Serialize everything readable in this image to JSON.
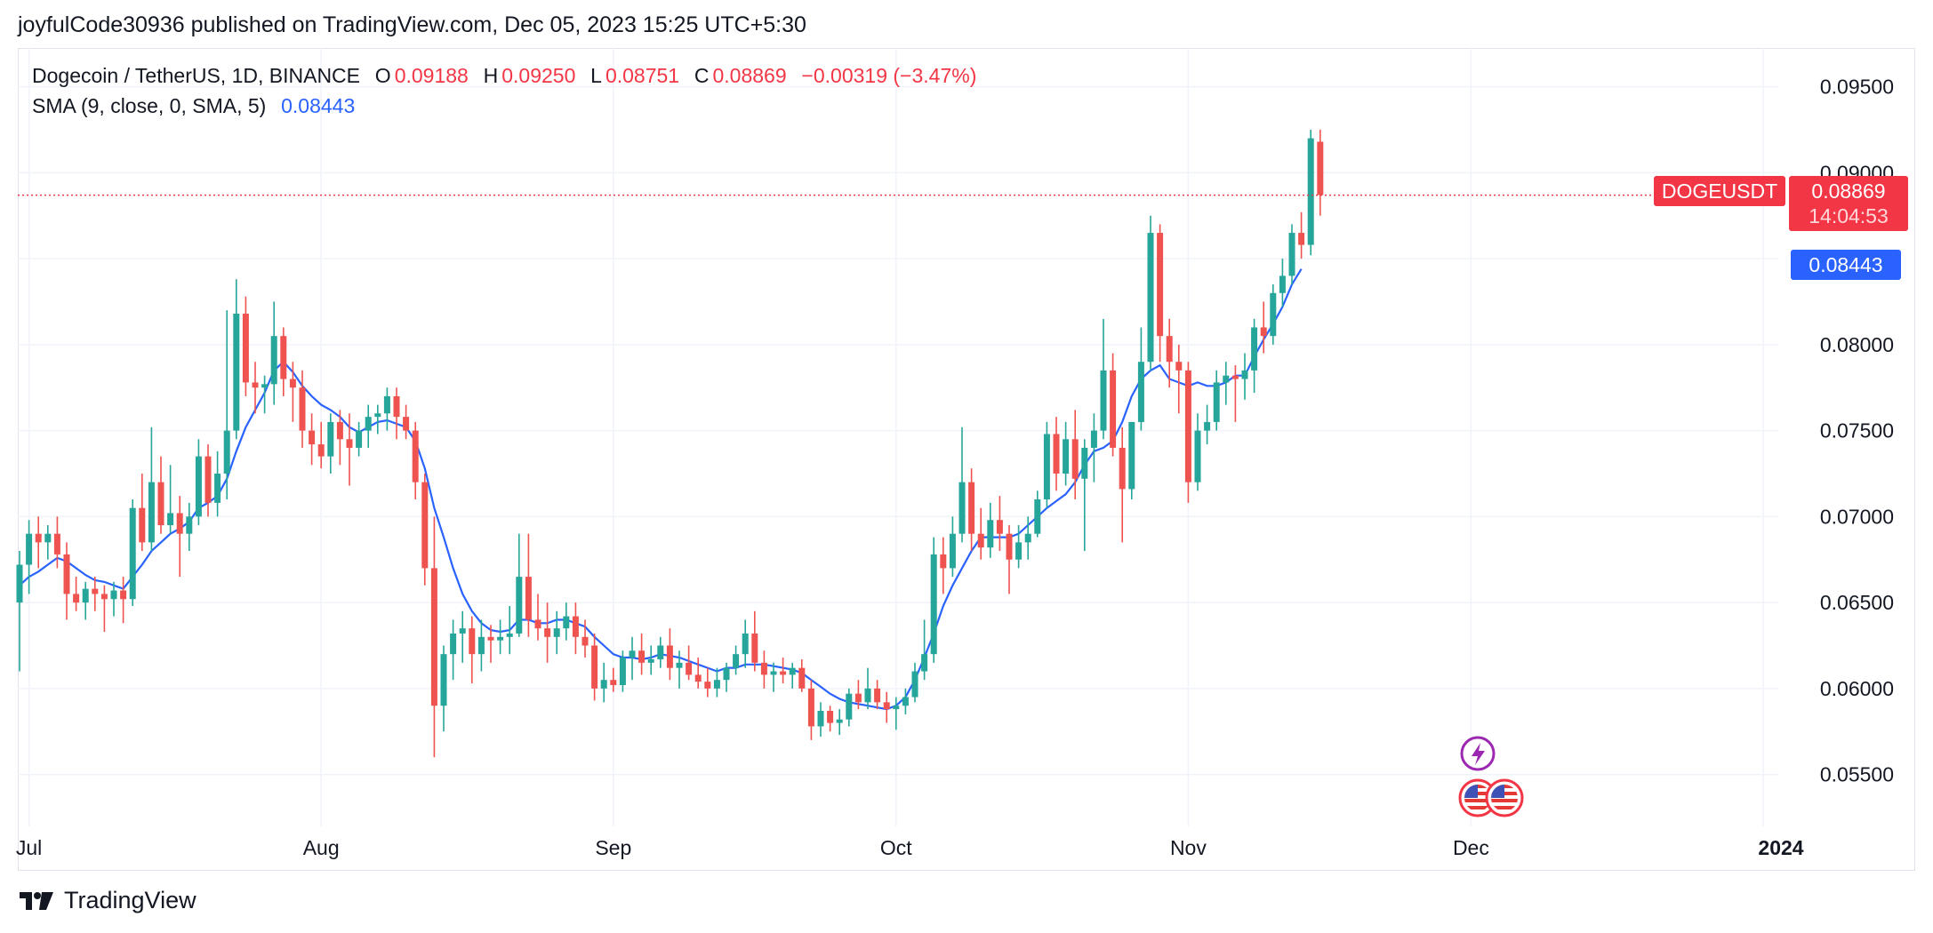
{
  "publish_line": "joyfulCode30936 published on TradingView.com, Dec 05, 2023 15:25 UTC+5:30",
  "legend": {
    "symbol": "Dogecoin / TetherUS, 1D, BINANCE",
    "o_label": "O",
    "o_value": "0.09188",
    "h_label": "H",
    "h_value": "0.09250",
    "l_label": "L",
    "l_value": "0.08751",
    "c_label": "C",
    "c_value": "0.08869",
    "change": "−0.00319 (−3.47%)",
    "sma_label": "SMA (9, close, 0, SMA, 5)",
    "sma_value": "0.08443"
  },
  "price_labels": {
    "symbol_tag": "DOGEUSDT",
    "last_price": "0.08869",
    "countdown": "14:04:53",
    "sma_price": "0.08443"
  },
  "footer": {
    "brand": "TradingView"
  },
  "colors": {
    "up": "#26a69a",
    "down": "#ef5350",
    "sma": "#2962ff",
    "grid": "#f0f3fa",
    "text": "#131722",
    "last_price_line": "#f23645"
  },
  "icons": [
    "lightning-event-icon",
    "us-flag-event-icon",
    "us-flag-event-icon"
  ],
  "chart_data": {
    "type": "candlestick",
    "title": "Dogecoin / TetherUS, 1D, BINANCE",
    "y_axis": {
      "position": "right",
      "ticks": [
        "0.09500",
        "0.09000",
        "0.08000",
        "0.07500",
        "0.07000",
        "0.06500",
        "0.06000",
        "0.05500"
      ],
      "ylim": [
        0.0525,
        0.0972
      ]
    },
    "x_axis": {
      "ticks": [
        "Jul",
        "Aug",
        "Sep",
        "Oct",
        "Nov",
        "Dec",
        "2024"
      ]
    },
    "grid": true,
    "start_date": "2023-06-30",
    "candles": [
      [
        0.065,
        0.068,
        0.061,
        0.0672
      ],
      [
        0.0672,
        0.0698,
        0.0655,
        0.069
      ],
      [
        0.069,
        0.07,
        0.067,
        0.0685
      ],
      [
        0.0685,
        0.0695,
        0.0675,
        0.069
      ],
      [
        0.069,
        0.07,
        0.067,
        0.0678
      ],
      [
        0.0678,
        0.0685,
        0.064,
        0.0655
      ],
      [
        0.0655,
        0.0665,
        0.0645,
        0.065
      ],
      [
        0.065,
        0.0662,
        0.064,
        0.0658
      ],
      [
        0.0658,
        0.0665,
        0.0645,
        0.0655
      ],
      [
        0.0655,
        0.066,
        0.0633,
        0.0652
      ],
      [
        0.0652,
        0.0662,
        0.0642,
        0.0657
      ],
      [
        0.0657,
        0.0665,
        0.0638,
        0.0652
      ],
      [
        0.0652,
        0.071,
        0.0648,
        0.0705
      ],
      [
        0.0705,
        0.0725,
        0.068,
        0.0685
      ],
      [
        0.0685,
        0.0752,
        0.068,
        0.072
      ],
      [
        0.072,
        0.0735,
        0.069,
        0.0695
      ],
      [
        0.0695,
        0.073,
        0.069,
        0.0702
      ],
      [
        0.0702,
        0.0712,
        0.0665,
        0.069
      ],
      [
        0.069,
        0.0708,
        0.068,
        0.07
      ],
      [
        0.07,
        0.0745,
        0.0695,
        0.0735
      ],
      [
        0.0735,
        0.0742,
        0.07,
        0.0708
      ],
      [
        0.0708,
        0.0738,
        0.07,
        0.0725
      ],
      [
        0.0725,
        0.082,
        0.071,
        0.075
      ],
      [
        0.075,
        0.0838,
        0.0745,
        0.0818
      ],
      [
        0.0818,
        0.0828,
        0.077,
        0.0778
      ],
      [
        0.0778,
        0.079,
        0.076,
        0.0775
      ],
      [
        0.0775,
        0.0782,
        0.076,
        0.0777
      ],
      [
        0.0777,
        0.0825,
        0.0765,
        0.0805
      ],
      [
        0.0805,
        0.081,
        0.077,
        0.078
      ],
      [
        0.078,
        0.079,
        0.0755,
        0.0775
      ],
      [
        0.0775,
        0.0785,
        0.074,
        0.075
      ],
      [
        0.075,
        0.076,
        0.073,
        0.0742
      ],
      [
        0.0742,
        0.0755,
        0.0728,
        0.0735
      ],
      [
        0.0735,
        0.076,
        0.0725,
        0.0755
      ],
      [
        0.0755,
        0.0762,
        0.073,
        0.0745
      ],
      [
        0.0745,
        0.076,
        0.0718,
        0.074
      ],
      [
        0.074,
        0.0755,
        0.0735,
        0.075
      ],
      [
        0.075,
        0.0765,
        0.074,
        0.0758
      ],
      [
        0.0758,
        0.0765,
        0.0748,
        0.076
      ],
      [
        0.076,
        0.0775,
        0.075,
        0.077
      ],
      [
        0.077,
        0.0775,
        0.0745,
        0.0758
      ],
      [
        0.0758,
        0.0765,
        0.0745,
        0.075
      ],
      [
        0.075,
        0.0755,
        0.071,
        0.072
      ],
      [
        0.072,
        0.0725,
        0.066,
        0.067
      ],
      [
        0.067,
        0.07,
        0.056,
        0.059
      ],
      [
        0.059,
        0.0625,
        0.0575,
        0.062
      ],
      [
        0.062,
        0.064,
        0.0605,
        0.0632
      ],
      [
        0.0632,
        0.0645,
        0.0615,
        0.0635
      ],
      [
        0.0635,
        0.0642,
        0.0603,
        0.062
      ],
      [
        0.062,
        0.064,
        0.061,
        0.063
      ],
      [
        0.063,
        0.0637,
        0.0615,
        0.0628
      ],
      [
        0.0628,
        0.064,
        0.062,
        0.063
      ],
      [
        0.063,
        0.0648,
        0.062,
        0.0632
      ],
      [
        0.0632,
        0.069,
        0.063,
        0.0665
      ],
      [
        0.0665,
        0.069,
        0.063,
        0.064
      ],
      [
        0.064,
        0.0655,
        0.0628,
        0.0635
      ],
      [
        0.0635,
        0.065,
        0.0615,
        0.063
      ],
      [
        0.063,
        0.0645,
        0.062,
        0.0635
      ],
      [
        0.0635,
        0.065,
        0.0628,
        0.0642
      ],
      [
        0.0642,
        0.065,
        0.062,
        0.063
      ],
      [
        0.063,
        0.064,
        0.0618,
        0.0625
      ],
      [
        0.0625,
        0.0632,
        0.0593,
        0.06
      ],
      [
        0.06,
        0.0615,
        0.0592,
        0.0605
      ],
      [
        0.0605,
        0.0612,
        0.0598,
        0.0602
      ],
      [
        0.0602,
        0.0622,
        0.0598,
        0.0618
      ],
      [
        0.0618,
        0.063,
        0.0605,
        0.0622
      ],
      [
        0.0622,
        0.0632,
        0.0608,
        0.0615
      ],
      [
        0.0615,
        0.0625,
        0.0608,
        0.0617
      ],
      [
        0.0617,
        0.063,
        0.0612,
        0.0625
      ],
      [
        0.0625,
        0.0635,
        0.0605,
        0.0612
      ],
      [
        0.0612,
        0.0622,
        0.06,
        0.0615
      ],
      [
        0.0615,
        0.0625,
        0.0605,
        0.0608
      ],
      [
        0.0608,
        0.0618,
        0.06,
        0.0604
      ],
      [
        0.0604,
        0.0612,
        0.0595,
        0.06
      ],
      [
        0.06,
        0.0612,
        0.0595,
        0.0605
      ],
      [
        0.0605,
        0.0615,
        0.0598,
        0.0612
      ],
      [
        0.0612,
        0.0625,
        0.0608,
        0.062
      ],
      [
        0.062,
        0.064,
        0.0612,
        0.0632
      ],
      [
        0.0632,
        0.0645,
        0.061,
        0.0615
      ],
      [
        0.0615,
        0.0622,
        0.06,
        0.0608
      ],
      [
        0.0608,
        0.0615,
        0.0598,
        0.061
      ],
      [
        0.061,
        0.0618,
        0.0603,
        0.0608
      ],
      [
        0.0608,
        0.0615,
        0.06,
        0.0612
      ],
      [
        0.0612,
        0.0617,
        0.0598,
        0.06
      ],
      [
        0.06,
        0.0605,
        0.057,
        0.0578
      ],
      [
        0.0578,
        0.0592,
        0.0572,
        0.0587
      ],
      [
        0.0587,
        0.059,
        0.0575,
        0.058
      ],
      [
        0.058,
        0.0588,
        0.0573,
        0.0582
      ],
      [
        0.0582,
        0.06,
        0.0578,
        0.0597
      ],
      [
        0.0597,
        0.0605,
        0.0588,
        0.0592
      ],
      [
        0.0592,
        0.0612,
        0.0588,
        0.06
      ],
      [
        0.06,
        0.0605,
        0.0588,
        0.0592
      ],
      [
        0.0592,
        0.0598,
        0.058,
        0.0588
      ],
      [
        0.0588,
        0.0595,
        0.0576,
        0.059
      ],
      [
        0.059,
        0.06,
        0.0585,
        0.0595
      ],
      [
        0.0595,
        0.0615,
        0.0592,
        0.061
      ],
      [
        0.061,
        0.064,
        0.0605,
        0.062
      ],
      [
        0.062,
        0.0688,
        0.0615,
        0.0678
      ],
      [
        0.0678,
        0.0688,
        0.0655,
        0.067
      ],
      [
        0.067,
        0.07,
        0.0665,
        0.069
      ],
      [
        0.069,
        0.0752,
        0.0685,
        0.072
      ],
      [
        0.072,
        0.0728,
        0.068,
        0.069
      ],
      [
        0.069,
        0.0705,
        0.0675,
        0.0682
      ],
      [
        0.0682,
        0.0708,
        0.0676,
        0.0698
      ],
      [
        0.0698,
        0.0712,
        0.068,
        0.069
      ],
      [
        0.069,
        0.0695,
        0.0655,
        0.0675
      ],
      [
        0.0675,
        0.0695,
        0.067,
        0.0685
      ],
      [
        0.0685,
        0.07,
        0.0675,
        0.069
      ],
      [
        0.069,
        0.0715,
        0.0688,
        0.071
      ],
      [
        0.071,
        0.0755,
        0.0705,
        0.0748
      ],
      [
        0.0748,
        0.0758,
        0.0715,
        0.0725
      ],
      [
        0.0725,
        0.0755,
        0.0718,
        0.0745
      ],
      [
        0.0745,
        0.0762,
        0.071,
        0.0722
      ],
      [
        0.0722,
        0.0745,
        0.068,
        0.074
      ],
      [
        0.074,
        0.076,
        0.072,
        0.075
      ],
      [
        0.075,
        0.0815,
        0.0745,
        0.0785
      ],
      [
        0.0785,
        0.0795,
        0.0735,
        0.074
      ],
      [
        0.074,
        0.0752,
        0.0685,
        0.0716
      ],
      [
        0.0716,
        0.0755,
        0.071,
        0.0755
      ],
      [
        0.0755,
        0.081,
        0.075,
        0.079
      ],
      [
        0.079,
        0.0875,
        0.0785,
        0.0865
      ],
      [
        0.0865,
        0.087,
        0.079,
        0.0805
      ],
      [
        0.0805,
        0.0815,
        0.0775,
        0.079
      ],
      [
        0.079,
        0.08,
        0.076,
        0.0785
      ],
      [
        0.0785,
        0.079,
        0.0708,
        0.072
      ],
      [
        0.072,
        0.076,
        0.0715,
        0.075
      ],
      [
        0.075,
        0.0765,
        0.0742,
        0.0755
      ],
      [
        0.0755,
        0.0785,
        0.075,
        0.0778
      ],
      [
        0.0778,
        0.079,
        0.0765,
        0.0782
      ],
      [
        0.0782,
        0.0788,
        0.0755,
        0.078
      ],
      [
        0.078,
        0.0795,
        0.0768,
        0.0785
      ],
      [
        0.0785,
        0.0815,
        0.0772,
        0.081
      ],
      [
        0.081,
        0.0825,
        0.0795,
        0.0805
      ],
      [
        0.0805,
        0.0835,
        0.08,
        0.083
      ],
      [
        0.083,
        0.085,
        0.0822,
        0.084
      ],
      [
        0.084,
        0.087,
        0.0835,
        0.0865
      ],
      [
        0.0865,
        0.0877,
        0.085,
        0.0858
      ],
      [
        0.0858,
        0.0925,
        0.0852,
        0.092
      ],
      [
        0.0918,
        0.0925,
        0.0875,
        0.0887
      ]
    ],
    "sma9": [
      0.066,
      0.0665,
      0.0668,
      0.0672,
      0.0676,
      0.0674,
      0.067,
      0.0666,
      0.0663,
      0.0662,
      0.066,
      0.0658,
      0.0665,
      0.0672,
      0.068,
      0.0685,
      0.069,
      0.0693,
      0.0697,
      0.0705,
      0.0708,
      0.0712,
      0.0722,
      0.0738,
      0.0752,
      0.0762,
      0.0772,
      0.0785,
      0.079,
      0.0784,
      0.0776,
      0.077,
      0.0765,
      0.0762,
      0.0758,
      0.0752,
      0.0749,
      0.0752,
      0.0755,
      0.0756,
      0.0754,
      0.0752,
      0.0744,
      0.0728,
      0.0705,
      0.0688,
      0.067,
      0.0655,
      0.0645,
      0.0638,
      0.0634,
      0.0633,
      0.0634,
      0.064,
      0.064,
      0.0638,
      0.0638,
      0.064,
      0.064,
      0.0638,
      0.0636,
      0.063,
      0.0625,
      0.062,
      0.0618,
      0.0618,
      0.0617,
      0.0618,
      0.062,
      0.0619,
      0.0618,
      0.0616,
      0.0614,
      0.0612,
      0.061,
      0.0612,
      0.0612,
      0.0614,
      0.0614,
      0.0614,
      0.0613,
      0.0612,
      0.0611,
      0.0609,
      0.0605,
      0.0601,
      0.0597,
      0.0594,
      0.0592,
      0.0591,
      0.059,
      0.0589,
      0.0588,
      0.059,
      0.0595,
      0.0605,
      0.0618,
      0.0632,
      0.0648,
      0.066,
      0.067,
      0.068,
      0.0688,
      0.0688,
      0.0688,
      0.0688,
      0.069,
      0.0695,
      0.07,
      0.0705,
      0.0709,
      0.0713,
      0.072,
      0.073,
      0.0738,
      0.074,
      0.0744,
      0.0755,
      0.077,
      0.078,
      0.0785,
      0.0788,
      0.078,
      0.0778,
      0.0776,
      0.0778,
      0.0776,
      0.0776,
      0.0778,
      0.0782,
      0.0782,
      0.0793,
      0.0803,
      0.0812,
      0.0822,
      0.0835,
      0.0844
    ]
  }
}
